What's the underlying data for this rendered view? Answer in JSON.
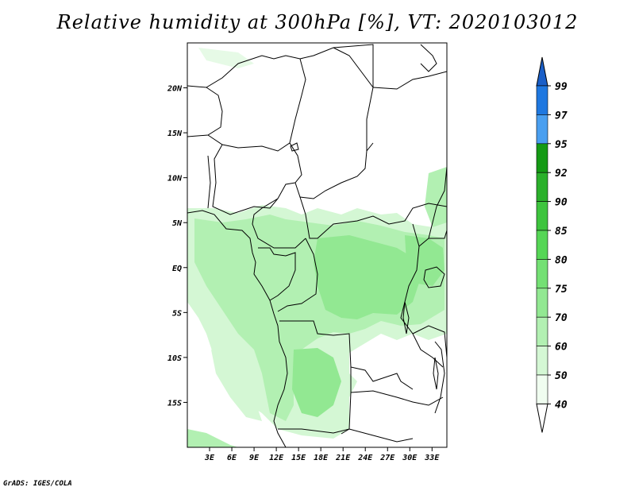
{
  "title": "Relative humidity at 300hPa [%], VT: 2020103012",
  "credit": "GrADS: IGES/COLA",
  "map": {
    "lon_ticks": [
      "3E",
      "6E",
      "9E",
      "12E",
      "15E",
      "18E",
      "21E",
      "24E",
      "27E",
      "30E",
      "33E"
    ],
    "lat_ticks": [
      "20N",
      "15N",
      "10N",
      "5N",
      "EQ",
      "5S",
      "10S",
      "15S"
    ],
    "lon_range": [
      0,
      35
    ],
    "lat_range": [
      -20,
      25
    ],
    "boundary_color": "#000000"
  },
  "colorbar": {
    "labels": [
      "99",
      "97",
      "95",
      "92",
      "90",
      "85",
      "80",
      "75",
      "70",
      "60",
      "50",
      "40"
    ],
    "colors": [
      "#1560d0",
      "#1f78e0",
      "#4a9ff0",
      "#159a15",
      "#2bb02b",
      "#3ec43e",
      "#56d656",
      "#74e074",
      "#92e892",
      "#b2f0b2",
      "#d4f7d4",
      "#f0fdf0"
    ],
    "top_arrow_color": "#1a5fc8",
    "bottom_arrow_color": "#ffffff"
  }
}
